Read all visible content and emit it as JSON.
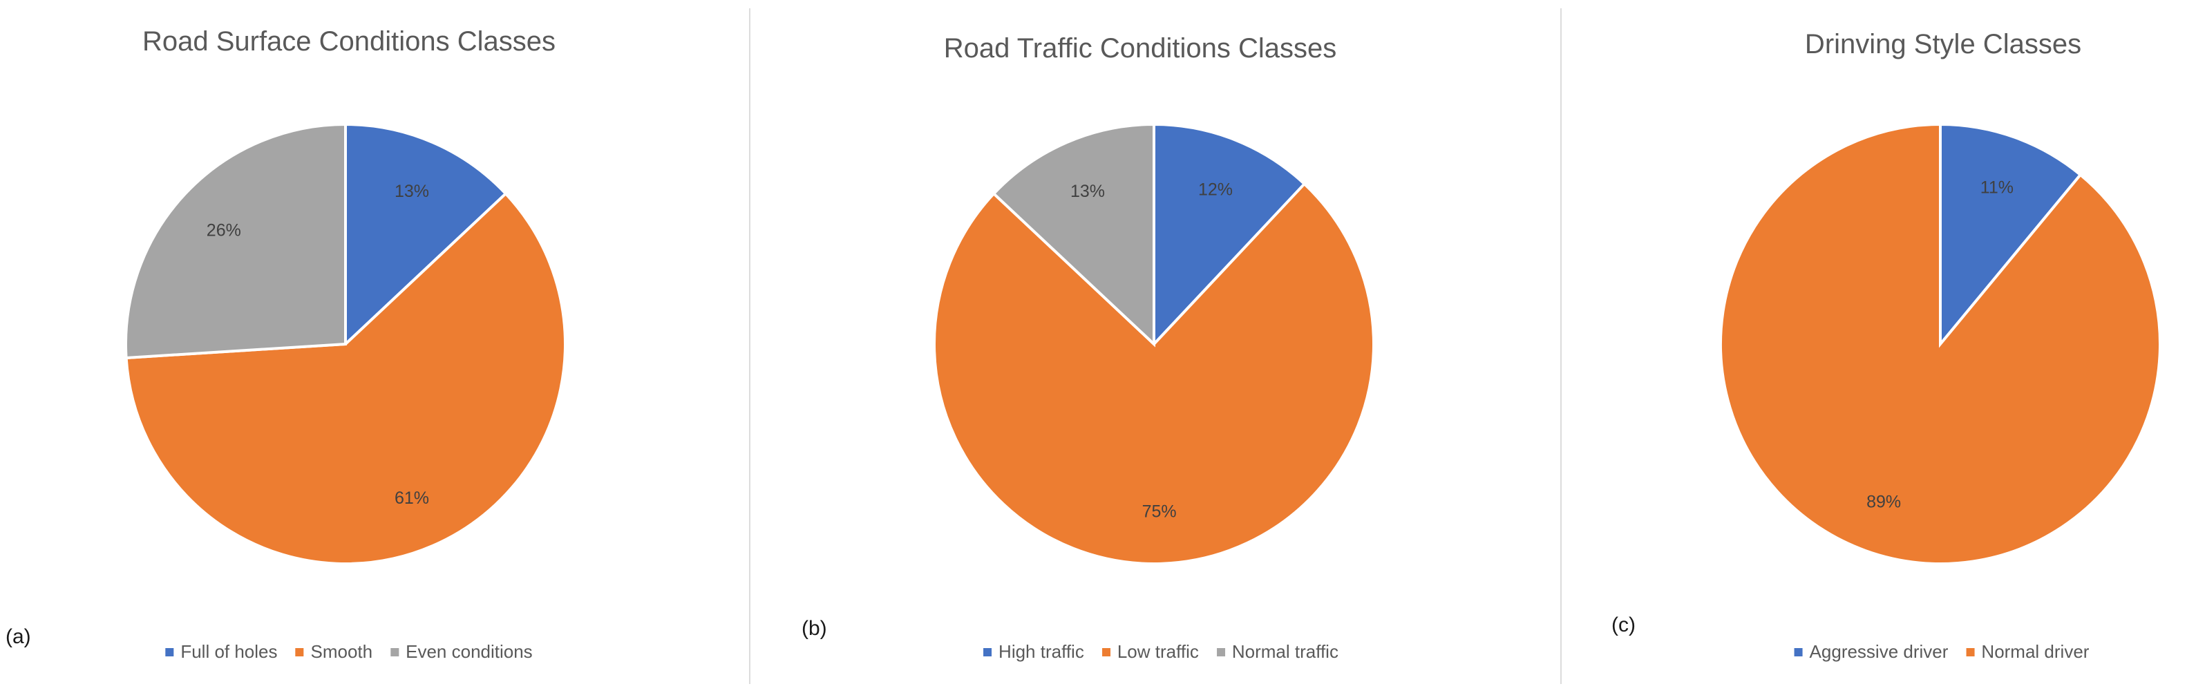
{
  "chart_data": [
    {
      "type": "pie",
      "panel": "(a)",
      "title": "Road Surface Conditions Classes",
      "slices": [
        {
          "label": "Full of holes",
          "value": 13,
          "label_text": "13%",
          "color": "#4472C4"
        },
        {
          "label": "Smooth",
          "value": 61,
          "label_text": "61%",
          "color": "#ED7D31"
        },
        {
          "label": "Even conditions",
          "value": 26,
          "label_text": "26%",
          "color": "#A5A5A5"
        }
      ],
      "legend_position": "bottom"
    },
    {
      "type": "pie",
      "panel": "(b)",
      "title": "Road Traffic Conditions Classes",
      "slices": [
        {
          "label": "High traffic",
          "value": 12,
          "label_text": "12%",
          "color": "#4472C4"
        },
        {
          "label": "Low traffic",
          "value": 75,
          "label_text": "75%",
          "color": "#ED7D31"
        },
        {
          "label": "Normal traffic",
          "value": 13,
          "label_text": "13%",
          "color": "#A5A5A5"
        }
      ],
      "legend_position": "bottom"
    },
    {
      "type": "pie",
      "panel": "(c)",
      "title": "Drinving Style Classes",
      "slices": [
        {
          "label": "Aggressive driver",
          "value": 11,
          "label_text": "11%",
          "color": "#4472C4"
        },
        {
          "label": "Normal driver",
          "value": 89,
          "label_text": "89%",
          "color": "#ED7D31"
        }
      ],
      "legend_position": "bottom"
    }
  ]
}
